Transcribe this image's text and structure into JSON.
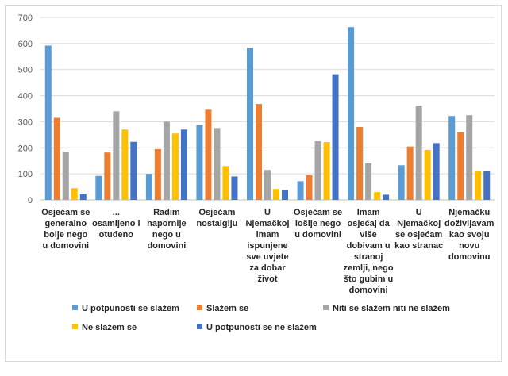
{
  "chart_data": {
    "type": "bar",
    "title": "",
    "xlabel": "",
    "ylabel": "",
    "ylim": [
      0,
      700
    ],
    "yticks": [
      0,
      100,
      200,
      300,
      400,
      500,
      600,
      700
    ],
    "grid": true,
    "legend_position": "bottom",
    "categories": [
      [
        "Osjećam se",
        "generalno",
        "bolje nego",
        "u domovini"
      ],
      [
        "...",
        "osamljeno i",
        "otuđeno"
      ],
      [
        "Radim",
        "napornije",
        "nego u",
        "domovini"
      ],
      [
        "Osjećam",
        "nostalgiju"
      ],
      [
        "U",
        "Njemačkoj",
        "imam",
        "ispunjene",
        "sve uvjete",
        "za dobar",
        "život"
      ],
      [
        "Osjećam se",
        "lošije nego",
        "u domovini"
      ],
      [
        "Imam",
        "osjećaj da",
        "više",
        "dobivam u",
        "stranoj",
        "zemlji, nego",
        "što gubim u",
        "domovini"
      ],
      [
        "U",
        "Njemačkoj",
        "se osjećam",
        "kao stranac"
      ],
      [
        "Njemačku",
        "doživljavam",
        "kao svoju",
        "novu",
        "domovinu"
      ]
    ],
    "series": [
      {
        "name": "U potpunosti se slažem",
        "color": "#5b9bd5",
        "values": [
          592,
          92,
          100,
          287,
          583,
          72,
          663,
          133,
          322
        ]
      },
      {
        "name": "Slažem se",
        "color": "#ed7d31",
        "values": [
          315,
          182,
          195,
          346,
          368,
          95,
          280,
          205,
          260
        ]
      },
      {
        "name": "Niti se slažem niti ne slažem",
        "color": "#a5a5a5",
        "values": [
          185,
          340,
          300,
          276,
          115,
          225,
          140,
          362,
          325
        ]
      },
      {
        "name": "Ne slažem se",
        "color": "#ffc000",
        "values": [
          45,
          270,
          255,
          130,
          42,
          222,
          30,
          192,
          110
        ]
      },
      {
        "name": "U potpunosti se ne slažem",
        "color": "#4472c4",
        "values": [
          22,
          223,
          270,
          90,
          38,
          482,
          20,
          218,
          110
        ]
      }
    ]
  }
}
